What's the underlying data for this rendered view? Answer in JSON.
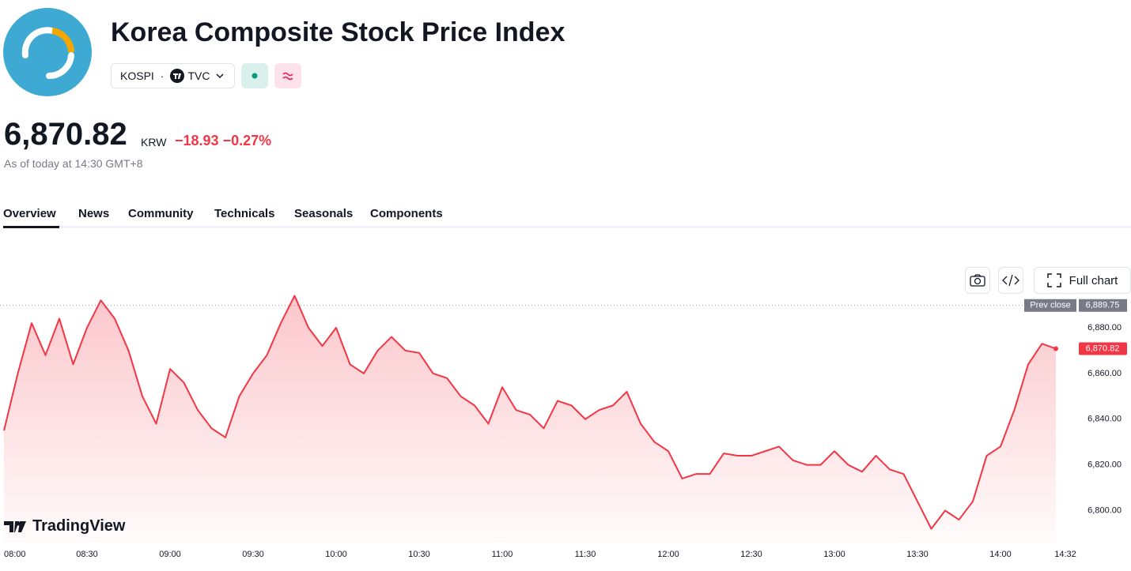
{
  "header": {
    "title": "Korea Composite Stock Price Index",
    "symbol": "KOSPI",
    "separator": "·",
    "exchange": "TVC",
    "price": "6,870.82",
    "currency": "KRW",
    "change": "−18.93",
    "change_percent": "−0.27%",
    "as_of": "As of today at 14:30 GMT+8"
  },
  "tabs": [
    "Overview",
    "News",
    "Community",
    "Technicals",
    "Seasonals",
    "Components"
  ],
  "toolbar": {
    "full_chart": "Full chart"
  },
  "brand": "TradingView",
  "chart_data": {
    "type": "line",
    "color": "#f23645",
    "x": [
      "08:00",
      "08:05",
      "08:10",
      "08:15",
      "08:20",
      "08:25",
      "08:30",
      "08:35",
      "08:40",
      "08:45",
      "08:50",
      "08:55",
      "09:00",
      "09:05",
      "09:10",
      "09:15",
      "09:20",
      "09:25",
      "09:30",
      "09:35",
      "09:40",
      "09:45",
      "09:50",
      "09:55",
      "10:00",
      "10:05",
      "10:10",
      "10:15",
      "10:20",
      "10:25",
      "10:30",
      "10:35",
      "10:40",
      "10:45",
      "10:50",
      "10:55",
      "11:00",
      "11:05",
      "11:10",
      "11:15",
      "11:20",
      "11:25",
      "11:30",
      "11:35",
      "11:40",
      "11:45",
      "11:50",
      "11:55",
      "12:00",
      "12:05",
      "12:10",
      "12:15",
      "12:20",
      "12:25",
      "12:30",
      "12:35",
      "12:40",
      "12:45",
      "12:50",
      "12:55",
      "13:00",
      "13:05",
      "13:10",
      "13:15",
      "13:20",
      "13:25",
      "13:30",
      "13:35",
      "13:40",
      "13:45",
      "13:50",
      "13:55",
      "14:00",
      "14:05",
      "14:10",
      "14:15",
      "14:20"
    ],
    "values": [
      6835,
      6860,
      6882,
      6868,
      6884,
      6864,
      6880,
      6892,
      6884,
      6870,
      6850,
      6838,
      6862,
      6856,
      6844,
      6836,
      6832,
      6850,
      6860,
      6868,
      6882,
      6894,
      6880,
      6872,
      6880,
      6864,
      6860,
      6870,
      6876,
      6870,
      6869,
      6860,
      6858,
      6850,
      6846,
      6838,
      6854,
      6844,
      6842,
      6836,
      6848,
      6846,
      6840,
      6844,
      6846,
      6852,
      6838,
      6830,
      6826,
      6814,
      6816,
      6816,
      6825,
      6824,
      6824,
      6826,
      6828,
      6822,
      6820,
      6820,
      6826,
      6820,
      6817,
      6824,
      6818,
      6816,
      6804,
      6792,
      6800,
      6796,
      6804,
      6824,
      6828,
      6844,
      6864,
      6873,
      6870.82
    ],
    "last_label": "6,870.82",
    "prev_close": 6889.75,
    "prev_close_title": "Prev close",
    "prev_close_label": "6,889.75",
    "ylim": [
      6786,
      6899
    ],
    "yticks": [
      {
        "value": 6800,
        "label": "6,800.00"
      },
      {
        "value": 6820,
        "label": "6,820.00"
      },
      {
        "value": 6840,
        "label": "6,840.00"
      },
      {
        "value": 6860,
        "label": "6,860.00"
      },
      {
        "value": 6880,
        "label": "6,880.00"
      }
    ],
    "xticks": [
      "08:00",
      "08:30",
      "09:00",
      "09:30",
      "10:00",
      "10:30",
      "11:00",
      "11:30",
      "12:00",
      "12:30",
      "13:00",
      "13:30",
      "14:00",
      "14:32"
    ]
  }
}
